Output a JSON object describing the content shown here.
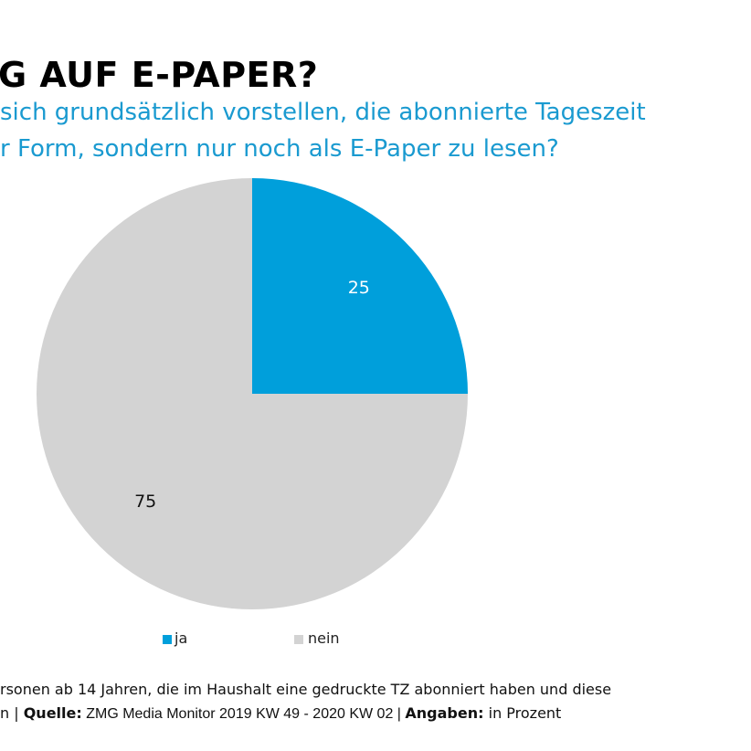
{
  "title": "G AUF E-PAPER?",
  "subtitle_lines": [
    "sich grundsätzlich vorstellen, die abonnierte Tageszeit",
    "r Form, sondern nur noch als E-Paper zu lesen?"
  ],
  "colors": {
    "ja": "#009fdb",
    "nein": "#d3d3d3",
    "subtitle": "#1a9ad0"
  },
  "chart_data": {
    "type": "pie",
    "categories": [
      "ja",
      "nein"
    ],
    "values": [
      25,
      75
    ],
    "data_labels": [
      "25",
      "75"
    ],
    "legend": {
      "placement": "bottom",
      "entries": [
        "ja",
        "nein"
      ]
    }
  },
  "footer": {
    "line1": "rsonen ab 14 Jahren, die im Haushalt eine gedruckte TZ abonniert haben und diese",
    "line2_prefix": "n | ",
    "source_label": "Quelle:",
    "source_value": " ZMG Media Monitor 2019 KW 49 - 2020 KW 02 | ",
    "units_label": "Angaben:",
    "units_value": " in Prozent"
  }
}
